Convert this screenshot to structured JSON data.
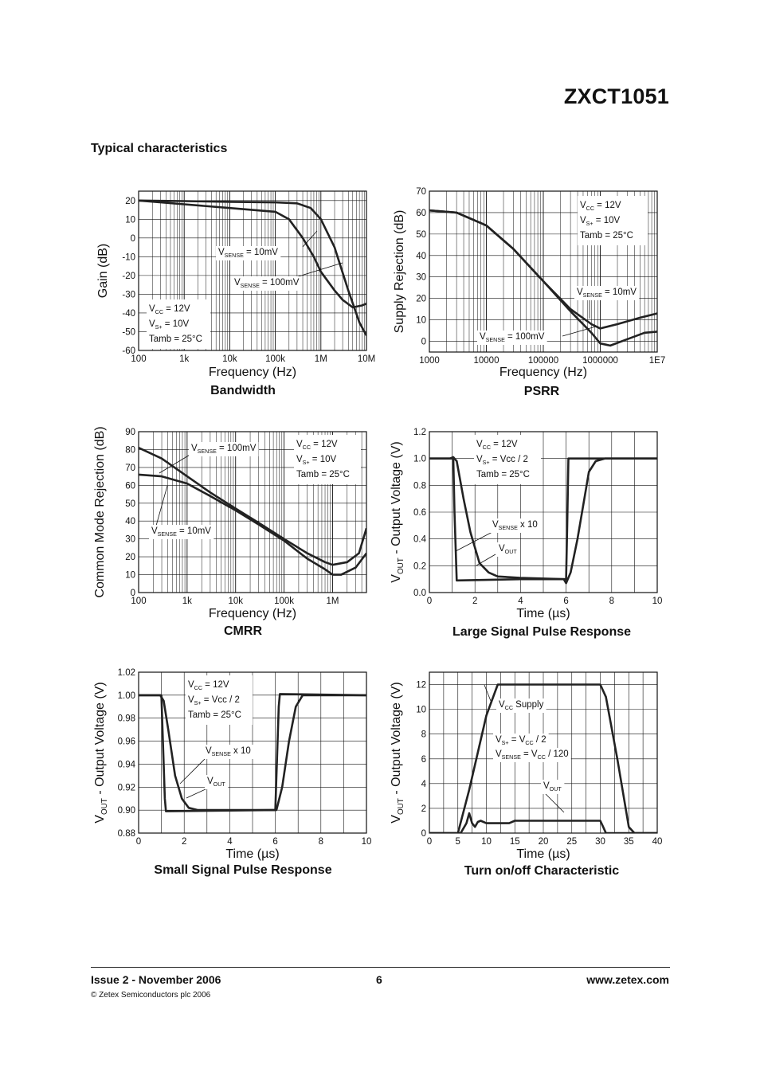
{
  "header": {
    "part_number": "ZXCT1051"
  },
  "section_title": "Typical characteristics",
  "footer": {
    "issue": "Issue 2 - November 2006",
    "page": "6",
    "website": "www.zetex.com",
    "copyright": "© Zetex Semiconductors plc 2006"
  },
  "chart_data": [
    {
      "id": "bandwidth",
      "type": "line",
      "title": "Bandwidth",
      "xlabel": "Frequency (Hz)",
      "ylabel": "Gain (dB)",
      "xscale": "log",
      "xlim": [
        100,
        10000000
      ],
      "ylim": [
        -60,
        25
      ],
      "xticks": [
        100,
        1000,
        10000,
        100000,
        1000000,
        10000000
      ],
      "xtick_labels": [
        "100",
        "1k",
        "10k",
        "100k",
        "1M",
        "10M"
      ],
      "yticks": [
        20,
        10,
        0,
        -10,
        -20,
        -30,
        -40,
        -50,
        -60
      ],
      "grid": true,
      "conditions": [
        {
          "main": "V",
          "sub": "CC",
          "rest": " = 12V"
        },
        {
          "main": "V",
          "sub": "S+",
          "rest": " = 10V"
        },
        {
          "main": "Tamb = 25°C",
          "sub": "",
          "rest": ""
        }
      ],
      "annotations": [
        {
          "main": "V",
          "sub": "SENSE",
          "rest": " = 10mV"
        },
        {
          "main": "V",
          "sub": "SENSE",
          "rest": " = 100mV"
        }
      ],
      "series": [
        {
          "x": [
            100,
            1000,
            10000,
            100000,
            300000,
            600000,
            1000000,
            2000000,
            4000000,
            7000000,
            10000000
          ],
          "y": [
            20,
            19.7,
            19.3,
            19,
            18.5,
            16,
            10,
            -5,
            -28,
            -45,
            -52
          ]
        },
        {
          "x": [
            100,
            1000,
            10000,
            100000,
            200000,
            400000,
            700000,
            1000000,
            2000000,
            3000000,
            5000000,
            8000000,
            10000000
          ],
          "y": [
            20,
            18,
            16,
            14,
            10,
            0,
            -10,
            -18,
            -28,
            -33,
            -37,
            -36,
            -35
          ]
        }
      ]
    },
    {
      "id": "psrr",
      "type": "line",
      "title": "PSRR",
      "xlabel": "Frequency (Hz)",
      "ylabel": "Supply Rejection (dB)",
      "xscale": "log",
      "xlim": [
        1000,
        10000000
      ],
      "ylim": [
        -5,
        70
      ],
      "xticks": [
        1000,
        10000,
        100000,
        1000000,
        10000000
      ],
      "xtick_labels": [
        "1000",
        "10000",
        "100000",
        "1000000",
        "1E7"
      ],
      "yticks": [
        70,
        60,
        50,
        40,
        30,
        20,
        10,
        0
      ],
      "grid": true,
      "conditions": [
        {
          "main": "V",
          "sub": "CC",
          "rest": " = 12V"
        },
        {
          "main": "V",
          "sub": "S+",
          "rest": " = 10V"
        },
        {
          "main": "Tamb = 25°C",
          "sub": "",
          "rest": ""
        }
      ],
      "annotations": [
        {
          "main": "V",
          "sub": "SENSE",
          "rest": " = 10mV"
        },
        {
          "main": "V",
          "sub": "SENSE",
          "rest": " = 100mV"
        }
      ],
      "series": [
        {
          "x": [
            1000,
            3000,
            10000,
            30000,
            100000,
            300000,
            700000,
            1000000,
            2000000,
            5000000,
            10000000
          ],
          "y": [
            61,
            60,
            54,
            43,
            28,
            15,
            8,
            6,
            8,
            11,
            13
          ]
        },
        {
          "x": [
            1000,
            3000,
            10000,
            30000,
            100000,
            300000,
            700000,
            1000000,
            1500000,
            3000000,
            6000000,
            10000000
          ],
          "y": [
            61,
            60,
            54,
            43,
            28,
            14,
            4,
            -1,
            -2,
            1,
            4,
            4.5
          ]
        }
      ]
    },
    {
      "id": "cmrr",
      "type": "line",
      "title": "CMRR",
      "xlabel": "Frequency (Hz)",
      "ylabel": "Common Mode Rejection (dB)",
      "xscale": "log",
      "xlim": [
        100,
        5000000
      ],
      "ylim": [
        0,
        90
      ],
      "xticks": [
        100,
        1000,
        10000,
        100000,
        1000000
      ],
      "xtick_labels": [
        "100",
        "1k",
        "10k",
        "100k",
        "1M"
      ],
      "yticks": [
        90,
        80,
        70,
        60,
        50,
        40,
        30,
        20,
        10,
        0
      ],
      "grid": true,
      "conditions": [
        {
          "main": "V",
          "sub": "CC",
          "rest": " = 12V"
        },
        {
          "main": "V",
          "sub": "S+",
          "rest": " = 10V"
        },
        {
          "main": "Tamb = 25°C",
          "sub": "",
          "rest": ""
        }
      ],
      "annotations": [
        {
          "main": "V",
          "sub": "SENSE",
          "rest": " = 100mV"
        },
        {
          "main": "V",
          "sub": "SENSE",
          "rest": " = 10mV"
        }
      ],
      "series": [
        {
          "x": [
            100,
            300,
            1000,
            3000,
            10000,
            30000,
            100000,
            300000,
            700000,
            1000000,
            2000000,
            3500000,
            5000000
          ],
          "y": [
            81,
            75,
            65,
            56,
            47,
            39,
            30,
            22,
            17,
            15.5,
            17,
            22,
            36
          ]
        },
        {
          "x": [
            100,
            300,
            1000,
            3000,
            10000,
            30000,
            100000,
            300000,
            700000,
            1000000,
            1500000,
            3000000,
            5000000
          ],
          "y": [
            66,
            65,
            61,
            54,
            46,
            38,
            29,
            19,
            13,
            10,
            10,
            14,
            22
          ]
        }
      ]
    },
    {
      "id": "large-signal",
      "type": "line",
      "title": "Large Signal Pulse Response",
      "xlabel": "Time (µs)",
      "ylabel_main": "V",
      "ylabel_sub": "OUT",
      "ylabel_rest": " - Output Voltage (V)",
      "xlim": [
        0,
        10
      ],
      "ylim": [
        0,
        1.2
      ],
      "xticks": [
        0,
        2,
        4,
        6,
        8,
        10
      ],
      "yticks": [
        1.2,
        1.0,
        0.8,
        0.6,
        0.4,
        0.2,
        0.0
      ],
      "ytick_labels": [
        "1.2",
        "1.0",
        "0.8",
        "0.6",
        "0.4",
        "0.2",
        "0.0"
      ],
      "grid": true,
      "conditions": [
        {
          "main": "V",
          "sub": "CC",
          "rest": " = 12V"
        },
        {
          "main": "V",
          "sub": "S+",
          "rest": " = Vcc / 2"
        },
        {
          "main": "Tamb = 25°C",
          "sub": "",
          "rest": ""
        }
      ],
      "annotations": [
        {
          "main": "V",
          "sub": "SENSE",
          "rest": " x 10"
        },
        {
          "main": "V",
          "sub": "OUT",
          "rest": ""
        }
      ],
      "series": [
        {
          "x": [
            0,
            0.95,
            1.0,
            1.05,
            1.1,
            1.2,
            4,
            5.9,
            6.0,
            6.05,
            6.1,
            6.2,
            10
          ],
          "y": [
            1.0,
            1.0,
            1.0,
            1.0,
            0.6,
            0.09,
            0.1,
            0.1,
            0.1,
            0.5,
            1.0,
            1.0,
            1.0
          ]
        },
        {
          "x": [
            0,
            0.9,
            1.05,
            1.2,
            1.5,
            1.8,
            2.2,
            2.6,
            3.0,
            4,
            5.9,
            6.0,
            6.2,
            6.5,
            6.8,
            7.0,
            7.3,
            7.7,
            10
          ],
          "y": [
            1.0,
            1.0,
            1.01,
            0.98,
            0.7,
            0.45,
            0.22,
            0.15,
            0.12,
            0.11,
            0.1,
            0.07,
            0.15,
            0.4,
            0.7,
            0.9,
            0.98,
            1.0,
            1.0
          ]
        }
      ]
    },
    {
      "id": "small-signal",
      "type": "line",
      "title": "Small Signal Pulse Response",
      "xlabel": "Time (µs)",
      "ylabel_main": "V",
      "ylabel_sub": "OUT",
      "ylabel_rest": " - Output Voltage (V)",
      "xlim": [
        0,
        10
      ],
      "ylim": [
        0.88,
        1.02
      ],
      "xticks": [
        0,
        2,
        4,
        6,
        8,
        10
      ],
      "yticks": [
        1.02,
        1.0,
        0.98,
        0.96,
        0.94,
        0.92,
        0.9,
        0.88
      ],
      "ytick_labels": [
        "1.02",
        "1.00",
        "0.98",
        "0.96",
        "0.94",
        "0.92",
        "0.90",
        "0.88"
      ],
      "grid": true,
      "conditions": [
        {
          "main": "V",
          "sub": "CC",
          "rest": " = 12V"
        },
        {
          "main": "V",
          "sub": "S+",
          "rest": " = Vcc / 2"
        },
        {
          "main": "Tamb = 25°C",
          "sub": "",
          "rest": ""
        }
      ],
      "annotations": [
        {
          "main": "V",
          "sub": "SENSE",
          "rest": " x 10"
        },
        {
          "main": "V",
          "sub": "OUT",
          "rest": ""
        }
      ],
      "series": [
        {
          "x": [
            0,
            1.0,
            1.05,
            1.15,
            1.2,
            5.9,
            6.0,
            6.05,
            6.15,
            6.2,
            10
          ],
          "y": [
            1.0,
            1.0,
            0.97,
            0.91,
            0.899,
            0.9,
            0.9,
            0.93,
            0.99,
            1.001,
            1.0
          ]
        },
        {
          "x": [
            0,
            0.95,
            1.1,
            1.3,
            1.6,
            1.9,
            2.2,
            2.6,
            5.9,
            6.05,
            6.3,
            6.6,
            6.9,
            7.2,
            10
          ],
          "y": [
            1.0,
            1.0,
            0.995,
            0.97,
            0.93,
            0.91,
            0.902,
            0.9,
            0.9,
            0.9,
            0.92,
            0.96,
            0.99,
            1.0,
            1.0
          ]
        }
      ]
    },
    {
      "id": "turn-on-off",
      "type": "line",
      "title": "Turn on/off Characteristic",
      "xlabel": "Time (µs)",
      "ylabel_main": "V",
      "ylabel_sub": "OUT",
      "ylabel_rest": " - Output Voltage (V)",
      "xlim": [
        0,
        40
      ],
      "ylim": [
        0,
        13
      ],
      "xticks": [
        0,
        5,
        10,
        15,
        20,
        25,
        30,
        35,
        40
      ],
      "yticks": [
        12,
        10,
        8,
        6,
        4,
        2,
        0
      ],
      "grid": true,
      "annotations": [
        {
          "main": "V",
          "sub": "CC",
          "rest": " Supply"
        },
        {
          "main": "V",
          "sub": "S+",
          "rest": " = V",
          "sub2": "CC",
          "rest2": " / 2"
        },
        {
          "main": "V",
          "sub": "SENSE",
          "rest": " = V",
          "sub2": "CC",
          "rest2": " / 120"
        },
        {
          "main": "V",
          "sub": "OUT",
          "rest": ""
        }
      ],
      "series": [
        {
          "x": [
            0,
            5,
            7,
            10,
            12,
            13,
            30,
            31,
            33,
            35,
            36,
            40
          ],
          "y": [
            0,
            0,
            3.5,
            9.5,
            12,
            12,
            12,
            11,
            6,
            0.5,
            0,
            0
          ]
        },
        {
          "x": [
            0,
            5.5,
            6,
            6.5,
            7,
            7.5,
            8,
            8.5,
            9,
            10,
            12,
            14,
            15,
            30,
            30.5,
            31,
            40
          ],
          "y": [
            0,
            0,
            0.4,
            0.8,
            1.6,
            0.8,
            0.5,
            0.9,
            1.0,
            0.8,
            0.8,
            0.8,
            1.0,
            1.0,
            0.5,
            0,
            0
          ]
        }
      ]
    }
  ]
}
